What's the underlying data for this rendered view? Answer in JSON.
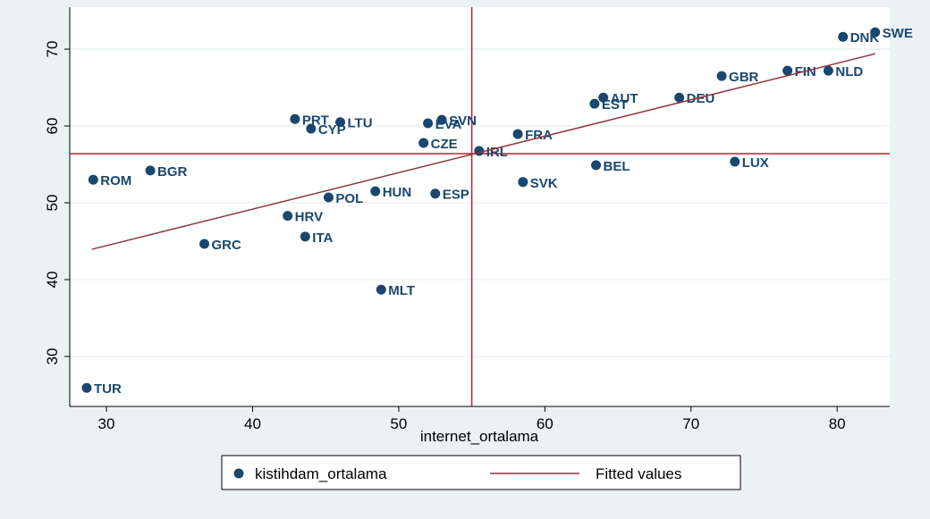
{
  "chart_data": {
    "type": "scatter",
    "xlabel": "internet_ortalama",
    "xlim": [
      27.49,
      83.6
    ],
    "ylim": [
      23.49,
      75.47
    ],
    "xticks": [
      30,
      40,
      50,
      60,
      70,
      80
    ],
    "yticks": [
      30,
      40,
      50,
      60,
      70
    ],
    "grid": true,
    "xline": 55.0,
    "yline": 56.4,
    "refline_color": "#b22234",
    "legend": "bottom",
    "series": [
      {
        "name": "kistihdam_ortalama",
        "color": "#1a476f",
        "labels": [
          "TUR",
          "ROM",
          "BGR",
          "GRC",
          "HRV",
          "ITA",
          "PRT",
          "CYP",
          "LTU",
          "POL",
          "HUN",
          "MLT",
          "EVA",
          "SVN",
          "CZE",
          "ESP",
          "IRL",
          "FRA",
          "SVK",
          "BEL",
          "EST",
          "AUT",
          "DEU",
          "GBR",
          "LUX",
          "FIN",
          "NLD",
          "DNK",
          "SWE"
        ],
        "x": [
          28.65,
          29.1,
          33.0,
          36.7,
          42.4,
          43.6,
          42.9,
          44.0,
          46.0,
          45.2,
          48.4,
          48.8,
          52.0,
          52.95,
          51.7,
          52.5,
          55.5,
          58.15,
          58.5,
          63.5,
          63.4,
          64.0,
          69.2,
          72.1,
          73.0,
          76.6,
          79.4,
          80.4,
          82.6
        ],
        "values": [
          25.9,
          53.0,
          54.2,
          44.65,
          48.3,
          45.6,
          60.9,
          59.65,
          60.5,
          50.7,
          51.5,
          38.7,
          60.35,
          60.8,
          57.8,
          51.2,
          56.75,
          58.95,
          52.7,
          54.9,
          62.9,
          63.7,
          63.7,
          66.5,
          55.35,
          67.2,
          67.2,
          71.6,
          72.2
        ]
      },
      {
        "name": "Fitted values",
        "color": "#90353b",
        "kind": "line",
        "x": [
          29.0,
          82.6
        ],
        "values": [
          43.95,
          69.4
        ]
      }
    ]
  }
}
